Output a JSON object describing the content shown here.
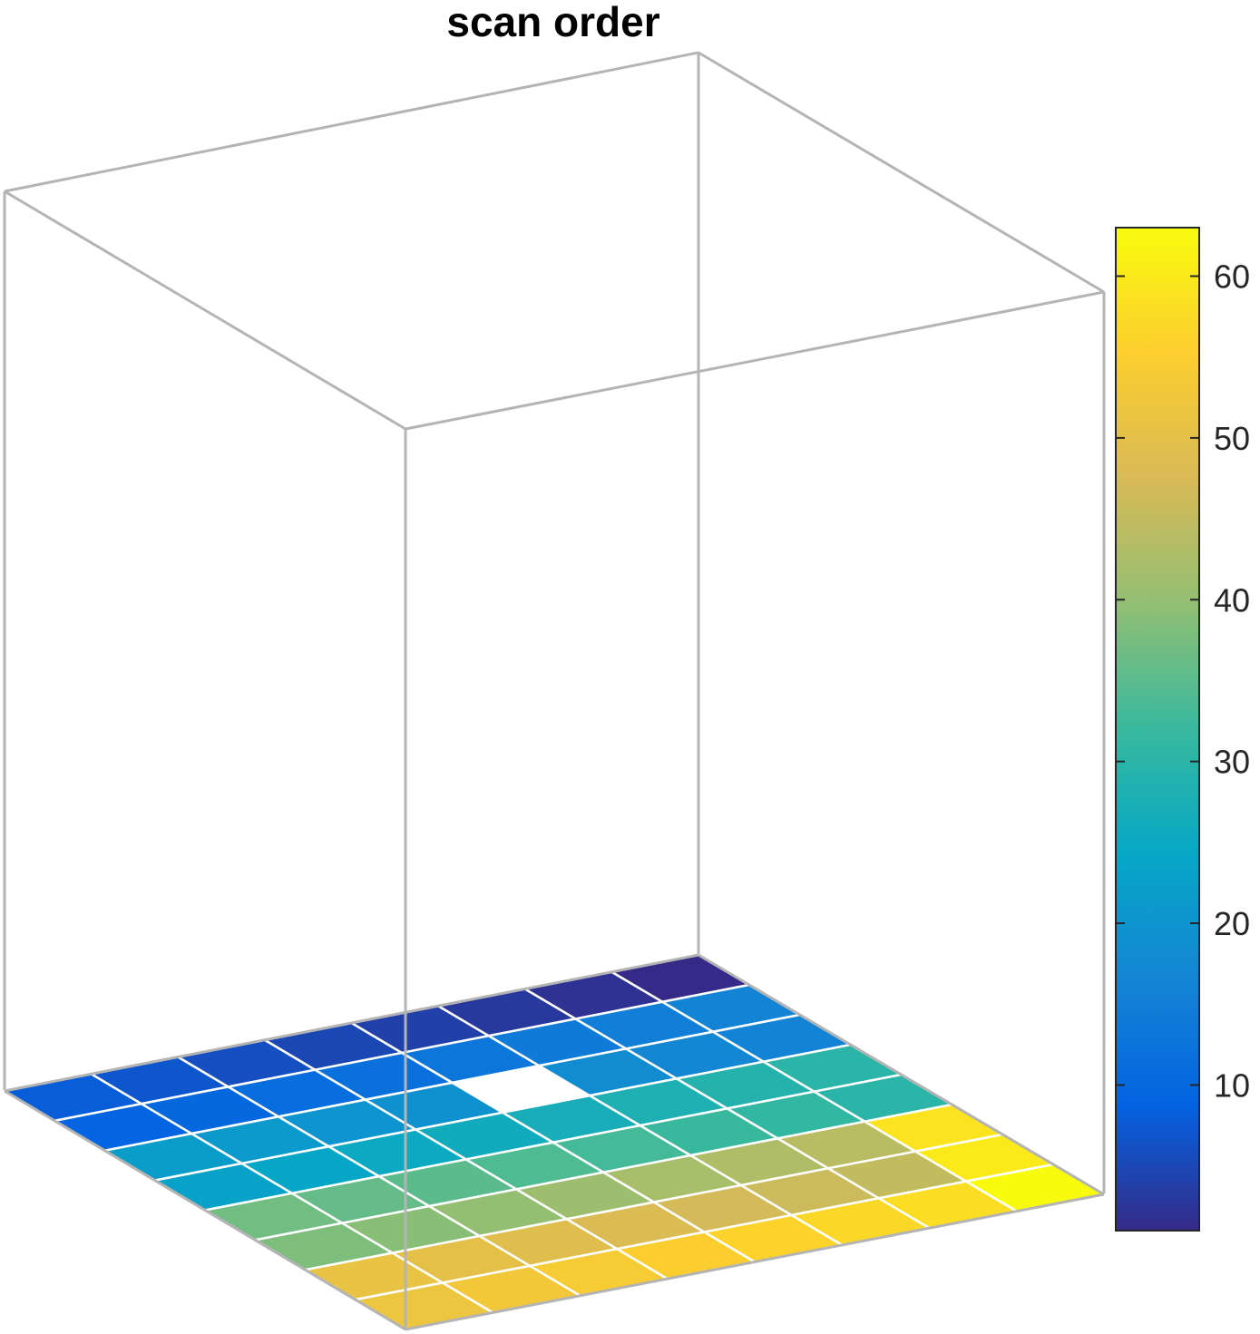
{
  "chart_data": {
    "type": "heatmap",
    "title": "scan order",
    "view": "3-D surface",
    "grid_size": [
      8,
      8
    ],
    "colormap": "parula",
    "colorbar": {
      "position": "right",
      "ticks": [
        10,
        20,
        30,
        40,
        50,
        60
      ],
      "tick_labels": [
        "10",
        "20",
        "30",
        "40",
        "50",
        "60"
      ],
      "clim": [
        1,
        63
      ]
    },
    "missing_cell": [
      3,
      4
    ],
    "values": [
      [
        8,
        9,
        22,
        23,
        37,
        38,
        51,
        52
      ],
      [
        7,
        10,
        21,
        24,
        36,
        39,
        50,
        53
      ],
      [
        6,
        11,
        20,
        25,
        35,
        40,
        49,
        54
      ],
      [
        5,
        12,
        19,
        26,
        34,
        41,
        48,
        55
      ],
      [
        4,
        13,
        null,
        27,
        33,
        42,
        47,
        56
      ],
      [
        3,
        14,
        18,
        28,
        32,
        43,
        46,
        57
      ],
      [
        2,
        15,
        17,
        29,
        31,
        44,
        45,
        58
      ],
      [
        1,
        16,
        16,
        30,
        30,
        59,
        60,
        63
      ]
    ]
  }
}
